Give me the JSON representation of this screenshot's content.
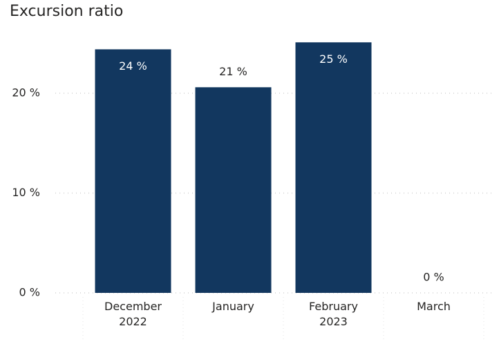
{
  "chart_data": {
    "type": "bar",
    "title": "Excursion ratio",
    "categories": [
      "December 2022",
      "January",
      "February 2023",
      "March"
    ],
    "values": [
      24.4,
      20.6,
      25.1,
      0
    ],
    "value_labels": [
      "24 %",
      "21 %",
      "25 %",
      "0 %"
    ],
    "color": "#12375f",
    "ylim": [
      0,
      25.5
    ],
    "yticks": [
      {
        "value": 0,
        "label": "0 %"
      },
      {
        "value": 10,
        "label": "10 %"
      },
      {
        "value": 20,
        "label": "20 %"
      }
    ],
    "grid": true
  }
}
